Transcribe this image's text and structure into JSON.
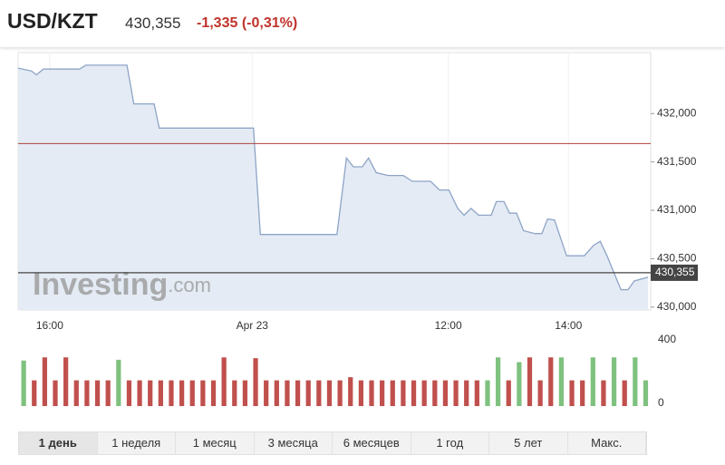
{
  "header": {
    "symbol": "USD/KZT",
    "price": "430,355",
    "change": "-1,335 (-0,31%)"
  },
  "chart_data": [
    {
      "type": "area",
      "color": "#8ea4c6",
      "fill": "#e4ebf4",
      "x": [
        0,
        2.1,
        2.9,
        4.0,
        9.7,
        10.7,
        17.2,
        18.3,
        21.5,
        22.3,
        37.2,
        38.3,
        50.4,
        51.9,
        53.0,
        54.4,
        55.4,
        56.6,
        58.5,
        60.9,
        62.3,
        65.2,
        66.6,
        68.1,
        69.5,
        70.5,
        71.6,
        72.8,
        74.8,
        75.6,
        76.8,
        77.7,
        78.8,
        79.9,
        81.7,
        82.8,
        83.7,
        84.8,
        86.7,
        89.5,
        91.0,
        92.0,
        93.1,
        95.3,
        96.4,
        97.4,
        99.6
      ],
      "values": [
        432.47,
        432.44,
        432.4,
        432.46,
        432.46,
        432.5,
        432.5,
        432.1,
        432.1,
        431.85,
        431.85,
        430.75,
        430.75,
        431.54,
        431.45,
        431.45,
        431.54,
        431.39,
        431.36,
        431.36,
        431.3,
        431.3,
        431.21,
        431.21,
        431.02,
        430.95,
        431.02,
        430.95,
        430.95,
        431.09,
        431.09,
        430.97,
        430.97,
        430.79,
        430.76,
        430.76,
        430.91,
        430.9,
        430.53,
        430.53,
        430.64,
        430.68,
        430.53,
        430.18,
        430.18,
        430.27,
        430.31
      ],
      "xlim": [
        0,
        100
      ],
      "ylim": [
        429.97,
        432.63
      ],
      "xticks": [
        {
          "value": 5,
          "label": "16:00"
        },
        {
          "value": 37,
          "label": "Apr 23"
        },
        {
          "value": 68,
          "label": "12:00"
        },
        {
          "value": 87,
          "label": "14:00"
        }
      ],
      "yticks": [
        {
          "value": 430,
          "label": "430,000"
        },
        {
          "value": 430.5,
          "label": "430,500"
        },
        {
          "value": 431,
          "label": "431,000"
        },
        {
          "value": 431.5,
          "label": "431,500"
        },
        {
          "value": 432,
          "label": "432,000"
        }
      ],
      "reference_line": {
        "value": 431.69,
        "color": "#b0413e"
      },
      "price_line": {
        "value": 430.355,
        "label": "430,355",
        "color": "#444444"
      },
      "watermark": {
        "brand": "Investing",
        "suffix": ".com"
      },
      "grid": true
    },
    {
      "type": "bar",
      "values": [
        270,
        145,
        290,
        145,
        290,
        145,
        145,
        145,
        145,
        275,
        145,
        145,
        145,
        145,
        145,
        145,
        145,
        145,
        145,
        290,
        145,
        145,
        285,
        145,
        145,
        145,
        145,
        145,
        145,
        145,
        145,
        165,
        145,
        145,
        145,
        145,
        145,
        145,
        145,
        145,
        145,
        145,
        145,
        145,
        145,
        290,
        145,
        260,
        290,
        145,
        290,
        290,
        145,
        145,
        290,
        145,
        290,
        145,
        290,
        145
      ],
      "colors": [
        "#7fc17f",
        "#c0504d",
        "#c0504d",
        "#c0504d",
        "#c0504d",
        "#c0504d",
        "#c0504d",
        "#c0504d",
        "#c0504d",
        "#7fc17f",
        "#c0504d",
        "#c0504d",
        "#c0504d",
        "#c0504d",
        "#c0504d",
        "#c0504d",
        "#c0504d",
        "#c0504d",
        "#c0504d",
        "#c0504d",
        "#c0504d",
        "#c0504d",
        "#c0504d",
        "#c0504d",
        "#c0504d",
        "#c0504d",
        "#c0504d",
        "#c0504d",
        "#c0504d",
        "#c0504d",
        "#c0504d",
        "#c0504d",
        "#c0504d",
        "#c0504d",
        "#c0504d",
        "#c0504d",
        "#c0504d",
        "#c0504d",
        "#c0504d",
        "#c0504d",
        "#c0504d",
        "#c0504d",
        "#c0504d",
        "#c0504d",
        "#7fc17f",
        "#7fc17f",
        "#c0504d",
        "#7fc17f",
        "#c0504d",
        "#c0504d",
        "#c0504d",
        "#7fc17f",
        "#c0504d",
        "#c0504d",
        "#7fc17f",
        "#c0504d",
        "#7fc17f",
        "#c0504d",
        "#7fc17f",
        "#7fc17f"
      ],
      "ylim": [
        0,
        400
      ],
      "yticks": [
        0,
        400
      ]
    }
  ],
  "range_buttons": [
    "1 день",
    "1 неделя",
    "1 месяц",
    "3 месяца",
    "6 месяцев",
    "1 год",
    "5 лет",
    "Макс."
  ],
  "active_button": 0
}
